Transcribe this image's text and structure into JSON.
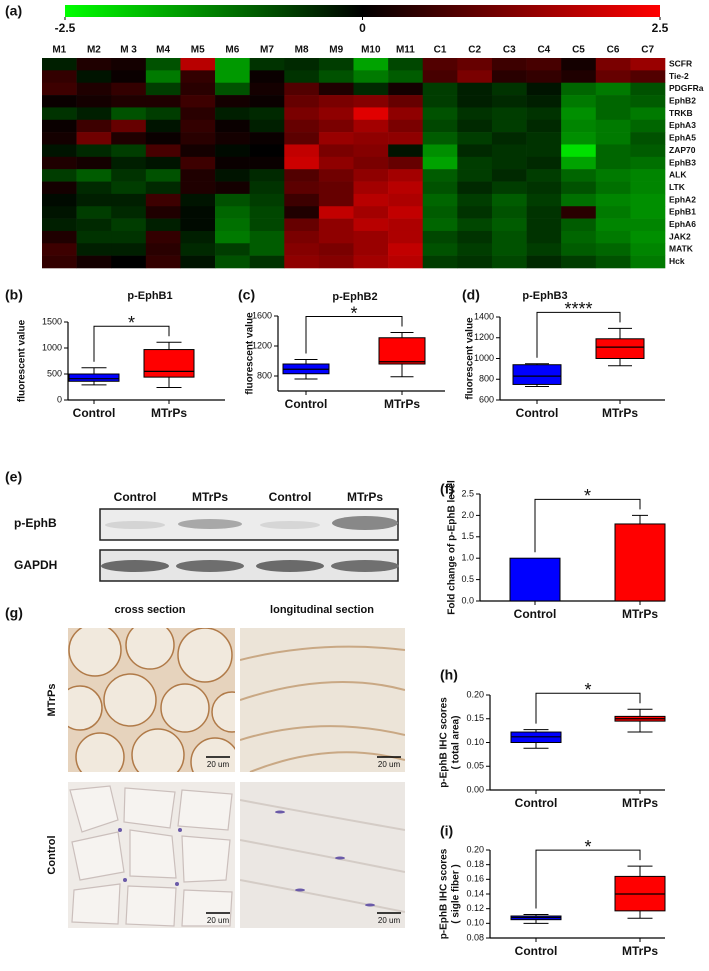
{
  "chart_data": [
    {
      "type": "heatmap",
      "panel": "(a)",
      "columns": [
        "M1",
        "M2",
        "M 3",
        "M4",
        "M5",
        "M6",
        "M7",
        "M8",
        "M9",
        "M10",
        "M11",
        "C1",
        "C2",
        "C3",
        "C4",
        "C5",
        "C6",
        "C7"
      ],
      "rows": [
        "SCFR",
        "Tie-2",
        "PDGFRa",
        "EphB2",
        "TRKB",
        "EphA3",
        "EphA5",
        "ZAP70",
        "EphB3",
        "ALK",
        "LTK",
        "EphA2",
        "EphB1",
        "EphA6",
        "JAK2",
        "MATK",
        "Hck"
      ],
      "values": [
        [
          -0.3,
          0.3,
          0.2,
          -0.8,
          1.8,
          -1.5,
          -0.5,
          -0.4,
          -0.6,
          -1.6,
          -0.7,
          0.8,
          1.0,
          0.6,
          0.7,
          0.2,
          1.2,
          1.5
        ],
        [
          0.5,
          -0.2,
          0.1,
          -1.2,
          0.5,
          -1.5,
          0.1,
          -0.5,
          -0.8,
          -1.2,
          -0.9,
          0.7,
          1.2,
          0.4,
          0.5,
          0.3,
          1.0,
          0.8
        ],
        [
          0.6,
          0.3,
          0.5,
          -0.6,
          0.4,
          -0.8,
          0.2,
          0.8,
          0.3,
          -0.4,
          0.2,
          -0.6,
          -0.3,
          -0.5,
          -0.2,
          -1.0,
          -1.2,
          -0.8
        ],
        [
          0.1,
          0.2,
          0.3,
          0.3,
          0.6,
          0.2,
          0.1,
          1.0,
          1.2,
          1.3,
          1.0,
          -0.6,
          -0.3,
          -0.4,
          -0.3,
          -1.2,
          -1.0,
          -0.9
        ],
        [
          -0.5,
          -0.3,
          -0.8,
          -0.6,
          0.4,
          -0.3,
          -0.4,
          1.2,
          1.4,
          2.2,
          1.4,
          -0.8,
          -0.5,
          -0.6,
          -0.5,
          -1.4,
          -1.0,
          -1.2
        ],
        [
          0.1,
          0.6,
          1.0,
          -0.2,
          0.5,
          0.1,
          -0.3,
          1.0,
          1.2,
          1.6,
          1.2,
          -0.7,
          -0.4,
          -0.6,
          -0.4,
          -1.3,
          -1.2,
          -1.0
        ],
        [
          0.2,
          1.1,
          0.3,
          0.1,
          0.4,
          0.2,
          0.1,
          0.9,
          1.5,
          1.4,
          1.4,
          -0.9,
          -0.6,
          -0.4,
          -0.5,
          -1.4,
          -1.2,
          -0.8
        ],
        [
          -0.2,
          -0.4,
          -0.6,
          0.7,
          0.2,
          -0.1,
          0.0,
          1.9,
          1.2,
          1.3,
          -0.2,
          -1.4,
          -0.4,
          -0.5,
          -0.5,
          -2.2,
          -1.0,
          -0.9
        ],
        [
          0.3,
          0.2,
          -0.3,
          -0.2,
          0.6,
          0.1,
          0.1,
          2.0,
          1.4,
          1.2,
          1.0,
          -1.6,
          -0.6,
          -0.5,
          -0.4,
          -1.6,
          -1.0,
          -1.1
        ],
        [
          -0.6,
          -0.9,
          -0.5,
          -0.8,
          0.3,
          -0.2,
          -0.4,
          0.8,
          1.1,
          1.4,
          1.6,
          -0.9,
          -0.6,
          -0.4,
          -0.6,
          -1.0,
          -1.2,
          -1.3
        ],
        [
          0.2,
          -0.4,
          -0.6,
          -0.4,
          0.3,
          0.2,
          -0.5,
          0.9,
          1.0,
          1.6,
          1.8,
          -0.8,
          -0.4,
          -0.6,
          -0.5,
          -0.8,
          -1.1,
          -1.3
        ],
        [
          -0.1,
          -0.3,
          -0.3,
          0.6,
          -0.2,
          -0.8,
          -0.6,
          0.6,
          1.0,
          1.8,
          1.7,
          -1.0,
          -0.6,
          -0.9,
          -0.6,
          -1.1,
          -1.3,
          -1.4
        ],
        [
          -0.2,
          -0.6,
          -0.4,
          0.3,
          -0.1,
          -1.0,
          -0.7,
          0.3,
          1.9,
          1.6,
          1.9,
          -0.9,
          -0.5,
          -0.8,
          -0.5,
          0.4,
          -1.2,
          -1.4
        ],
        [
          -0.3,
          -0.4,
          -0.6,
          -0.3,
          -0.1,
          -1.1,
          -0.7,
          1.0,
          1.4,
          1.8,
          1.7,
          -1.0,
          -0.7,
          -0.9,
          -0.5,
          -0.9,
          -1.3,
          -1.3
        ],
        [
          0.3,
          -0.5,
          -0.5,
          0.5,
          -0.3,
          -1.2,
          -0.9,
          1.2,
          1.4,
          1.5,
          1.7,
          -0.7,
          -0.5,
          -0.8,
          -0.5,
          -1.0,
          -1.2,
          -1.4
        ],
        [
          0.6,
          -0.3,
          -0.3,
          0.4,
          -0.4,
          -0.6,
          -0.9,
          1.3,
          1.2,
          1.5,
          1.9,
          -0.8,
          -0.6,
          -0.8,
          -0.6,
          -0.9,
          -1.0,
          -1.3
        ],
        [
          0.5,
          0.2,
          0.0,
          0.5,
          -0.2,
          -0.8,
          -0.5,
          1.4,
          1.3,
          1.6,
          1.8,
          -0.6,
          -0.5,
          -0.7,
          -0.4,
          -0.6,
          -0.8,
          -1.2
        ]
      ],
      "zlim": [
        -2.5,
        2.5
      ],
      "colorbar_ticks": [
        -2.5,
        0,
        2.5
      ],
      "colormap": [
        "#00ff00",
        "#000000",
        "#ff0000"
      ]
    },
    {
      "type": "box",
      "panel": "(b)",
      "title": "p-EphB1",
      "ylabel": [
        "fluorescent value"
      ],
      "categories": [
        "Control",
        "MTrPs"
      ],
      "colors": [
        "#0000ff",
        "#ff0000"
      ],
      "boxes": [
        {
          "min": 290,
          "q1": 360,
          "median": 410,
          "q3": 500,
          "max": 620
        },
        {
          "min": 240,
          "q1": 440,
          "median": 550,
          "q3": 970,
          "max": 1110
        }
      ],
      "ylim": [
        0,
        1500
      ],
      "yticks": [
        0,
        500,
        1000,
        1500
      ],
      "annotation": "*"
    },
    {
      "type": "box",
      "panel": "(c)",
      "title": "p-EphB2",
      "ylabel": [
        "fluorescent value"
      ],
      "categories": [
        "Control",
        "MTrPs"
      ],
      "colors": [
        "#0000ff",
        "#ff0000"
      ],
      "boxes": [
        {
          "min": 760,
          "q1": 830,
          "median": 890,
          "q3": 960,
          "max": 1020
        },
        {
          "min": 790,
          "q1": 960,
          "median": 990,
          "q3": 1310,
          "max": 1380
        }
      ],
      "ylim": [
        600,
        1600
      ],
      "yticks": [
        800,
        1200,
        1600
      ],
      "annotation": "*"
    },
    {
      "type": "box",
      "panel": "(d)",
      "title": "p-EphB3",
      "ylabel": [
        "fluorescent value"
      ],
      "categories": [
        "Control",
        "MTrPs"
      ],
      "colors": [
        "#0000ff",
        "#ff0000"
      ],
      "boxes": [
        {
          "min": 730,
          "q1": 750,
          "median": 830,
          "q3": 940,
          "max": 950
        },
        {
          "min": 930,
          "q1": 1000,
          "median": 1110,
          "q3": 1190,
          "max": 1290
        }
      ],
      "ylim": [
        600,
        1400
      ],
      "yticks": [
        600,
        800,
        1000,
        1200,
        1400
      ],
      "annotation": "****"
    },
    {
      "type": "bar",
      "panel": "(f)",
      "ylabel": [
        "Fold change of p-EphB level"
      ],
      "categories": [
        "Control",
        "MTrPs"
      ],
      "colors": [
        "#0000ff",
        "#ff0000"
      ],
      "values": [
        1.0,
        1.8
      ],
      "errors": [
        null,
        0.2
      ],
      "ylim": [
        0,
        2.5
      ],
      "yticks": [
        {
          "value": 0,
          "label": "0.0"
        },
        {
          "value": 0.5,
          "label": "0.5"
        },
        {
          "value": 1,
          "label": "1.0"
        },
        {
          "value": 1.5,
          "label": "1.5"
        },
        {
          "value": 2,
          "label": "2.0"
        },
        {
          "value": 2.5,
          "label": "2.5"
        }
      ],
      "annotation": "*"
    },
    {
      "type": "box",
      "panel": "(h)",
      "ylabel": [
        "p-EphB IHC scores",
        "( total area)"
      ],
      "categories": [
        "Control",
        "MTrPs"
      ],
      "colors": [
        "#0000ff",
        "#ff0000"
      ],
      "boxes": [
        {
          "min": 0.088,
          "q1": 0.1,
          "median": 0.112,
          "q3": 0.122,
          "max": 0.127
        },
        {
          "min": 0.122,
          "q1": 0.145,
          "median": 0.15,
          "q3": 0.155,
          "max": 0.17
        }
      ],
      "ylim": [
        0,
        0.2
      ],
      "yticks": [
        {
          "value": 0,
          "label": "0.00"
        },
        {
          "value": 0.05,
          "label": "0.05"
        },
        {
          "value": 0.1,
          "label": "0.10"
        },
        {
          "value": 0.15,
          "label": "0.15"
        },
        {
          "value": 0.2,
          "label": "0.20"
        }
      ],
      "annotation": "*"
    },
    {
      "type": "box",
      "panel": "(i)",
      "ylabel": [
        "p-EphB IHC scores",
        "( sigle fiber )"
      ],
      "categories": [
        "Control",
        "MTrPs"
      ],
      "colors": [
        "#0000ff",
        "#ff0000"
      ],
      "boxes": [
        {
          "min": 0.1,
          "q1": 0.105,
          "median": 0.108,
          "q3": 0.11,
          "max": 0.112
        },
        {
          "min": 0.107,
          "q1": 0.117,
          "median": 0.14,
          "q3": 0.164,
          "max": 0.178
        }
      ],
      "ylim": [
        0.08,
        0.2
      ],
      "yticks": [
        {
          "value": 0.08,
          "label": "0.08"
        },
        {
          "value": 0.1,
          "label": "0.10"
        },
        {
          "value": 0.12,
          "label": "0.12"
        },
        {
          "value": 0.14,
          "label": "0.14"
        },
        {
          "value": 0.16,
          "label": "0.16"
        },
        {
          "value": 0.18,
          "label": "0.18"
        },
        {
          "value": 0.2,
          "label": "0.20"
        }
      ],
      "annotation": "*"
    }
  ],
  "western_blot": {
    "panel": "(e)",
    "lanes": [
      "Control",
      "MTrPs",
      "Control",
      "MTrPs"
    ],
    "rows": [
      "p-EphB",
      "GAPDH"
    ]
  },
  "micrographs": {
    "panel": "(g)",
    "columns": [
      "cross section",
      "longitudinal section"
    ],
    "rows": [
      "MTrPs",
      "Control"
    ],
    "scale_bar": "20 um"
  }
}
